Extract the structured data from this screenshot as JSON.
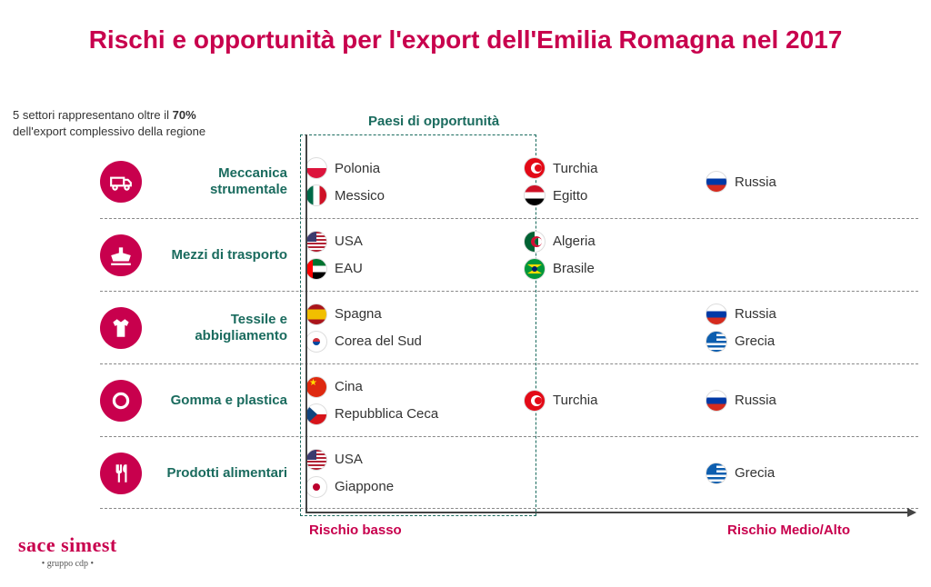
{
  "title": "Rischi e opportunità per l'export dell'Emilia Romagna nel 2017",
  "subtitle_pre": "5 settori rappresentano oltre il ",
  "subtitle_bold": "70%",
  "subtitle_post": " dell'export complessivo della regione",
  "col_header_opportunita": "Paesi di opportunità",
  "axis_low": "Rischio basso",
  "axis_high": "Rischio Medio/Alto",
  "logo_main": "sace simest",
  "logo_sub": "• gruppo cdp •",
  "colors": {
    "brand": "#c8004d",
    "teal": "#1a6b5e",
    "text": "#333333",
    "axis": "#444444"
  },
  "sectors": [
    {
      "label": "Meccanica strumentale",
      "icon": "truck-icon",
      "low": [
        {
          "name": "Polonia",
          "flag": "pl"
        },
        {
          "name": "Messico",
          "flag": "mx"
        }
      ],
      "mid": [
        {
          "name": "Turchia",
          "flag": "tr"
        },
        {
          "name": "Egitto",
          "flag": "eg"
        }
      ],
      "high": [
        {
          "name": "Russia",
          "flag": "ru"
        }
      ]
    },
    {
      "label": "Mezzi di trasporto",
      "icon": "ship-icon",
      "low": [
        {
          "name": "USA",
          "flag": "us"
        },
        {
          "name": "EAU",
          "flag": "ae"
        }
      ],
      "mid": [
        {
          "name": "Algeria",
          "flag": "dz"
        },
        {
          "name": "Brasile",
          "flag": "br"
        }
      ],
      "high": []
    },
    {
      "label": "Tessile e abbigliamento",
      "icon": "shirt-icon",
      "low": [
        {
          "name": "Spagna",
          "flag": "es"
        },
        {
          "name": "Corea del Sud",
          "flag": "kr"
        }
      ],
      "mid": [],
      "high": [
        {
          "name": "Russia",
          "flag": "ru"
        },
        {
          "name": "Grecia",
          "flag": "gr"
        }
      ]
    },
    {
      "label": "Gomma e plastica",
      "icon": "gear-icon",
      "low": [
        {
          "name": "Cina",
          "flag": "cn"
        },
        {
          "name": "Repubblica Ceca",
          "flag": "cz"
        }
      ],
      "mid": [
        {
          "name": "Turchia",
          "flag": "tr"
        }
      ],
      "high": [
        {
          "name": "Russia",
          "flag": "ru"
        }
      ]
    },
    {
      "label": "Prodotti alimentari",
      "icon": "food-icon",
      "low": [
        {
          "name": "USA",
          "flag": "us"
        },
        {
          "name": "Giappone",
          "flag": "jp"
        }
      ],
      "mid": [],
      "high": [
        {
          "name": "Grecia",
          "flag": "gr"
        }
      ]
    }
  ]
}
